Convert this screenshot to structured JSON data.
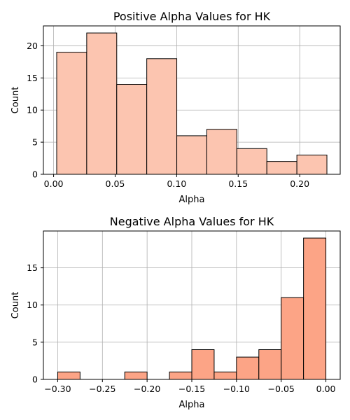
{
  "chart_data": [
    {
      "type": "bar",
      "title": "Positive Alpha Values for HK",
      "xlabel": "Alpha",
      "ylabel": "Count",
      "bins": [
        {
          "x0": 0.0025,
          "x1": 0.0269,
          "count": 19
        },
        {
          "x0": 0.0269,
          "x1": 0.0513,
          "count": 22
        },
        {
          "x0": 0.0513,
          "x1": 0.0757,
          "count": 14
        },
        {
          "x0": 0.0757,
          "x1": 0.1001,
          "count": 18
        },
        {
          "x0": 0.1001,
          "x1": 0.1245,
          "count": 6
        },
        {
          "x0": 0.1245,
          "x1": 0.1489,
          "count": 7
        },
        {
          "x0": 0.1489,
          "x1": 0.1733,
          "count": 4
        },
        {
          "x0": 0.1733,
          "x1": 0.1977,
          "count": 2
        },
        {
          "x0": 0.1977,
          "x1": 0.2221,
          "count": 3
        }
      ],
      "xlim": [
        -0.0083,
        0.2329
      ],
      "ylim": [
        0,
        23.1
      ],
      "xticks": [
        {
          "value": 0.0,
          "label": "0.00"
        },
        {
          "value": 0.05,
          "label": "0.05"
        },
        {
          "value": 0.1,
          "label": "0.10"
        },
        {
          "value": 0.15,
          "label": "0.15"
        },
        {
          "value": 0.2,
          "label": "0.20"
        }
      ],
      "yticks": [
        {
          "value": 0,
          "label": "0"
        },
        {
          "value": 5,
          "label": "5"
        },
        {
          "value": 10,
          "label": "10"
        },
        {
          "value": 15,
          "label": "15"
        },
        {
          "value": 20,
          "label": "20"
        }
      ],
      "grid": true,
      "color": "#fcc5b0"
    },
    {
      "type": "bar",
      "title": "Negative Alpha Values for HK",
      "xlabel": "Alpha",
      "ylabel": "Count",
      "bins": [
        {
          "x0": -0.3,
          "x1": -0.275,
          "count": 1
        },
        {
          "x0": -0.275,
          "x1": -0.25,
          "count": 0
        },
        {
          "x0": -0.25,
          "x1": -0.225,
          "count": 0
        },
        {
          "x0": -0.225,
          "x1": -0.2,
          "count": 1
        },
        {
          "x0": -0.2,
          "x1": -0.175,
          "count": 0
        },
        {
          "x0": -0.175,
          "x1": -0.15,
          "count": 1
        },
        {
          "x0": -0.15,
          "x1": -0.125,
          "count": 4
        },
        {
          "x0": -0.125,
          "x1": -0.1,
          "count": 1
        },
        {
          "x0": -0.1,
          "x1": -0.075,
          "count": 3
        },
        {
          "x0": -0.075,
          "x1": -0.05,
          "count": 4
        },
        {
          "x0": -0.05,
          "x1": -0.025,
          "count": 11
        },
        {
          "x0": -0.025,
          "x1": 0.0,
          "count": 19
        }
      ],
      "xlim": [
        -0.316,
        0.016
      ],
      "ylim": [
        0,
        19.95
      ],
      "xticks": [
        {
          "value": -0.3,
          "label": "−0.30"
        },
        {
          "value": -0.25,
          "label": "−0.25"
        },
        {
          "value": -0.2,
          "label": "−0.20"
        },
        {
          "value": -0.15,
          "label": "−0.15"
        },
        {
          "value": -0.1,
          "label": "−0.10"
        },
        {
          "value": -0.05,
          "label": "−0.05"
        },
        {
          "value": 0.0,
          "label": "0.00"
        }
      ],
      "yticks": [
        {
          "value": 0,
          "label": "0"
        },
        {
          "value": 5,
          "label": "5"
        },
        {
          "value": 10,
          "label": "10"
        },
        {
          "value": 15,
          "label": "15"
        }
      ],
      "grid": true,
      "color": "#fca486"
    }
  ]
}
